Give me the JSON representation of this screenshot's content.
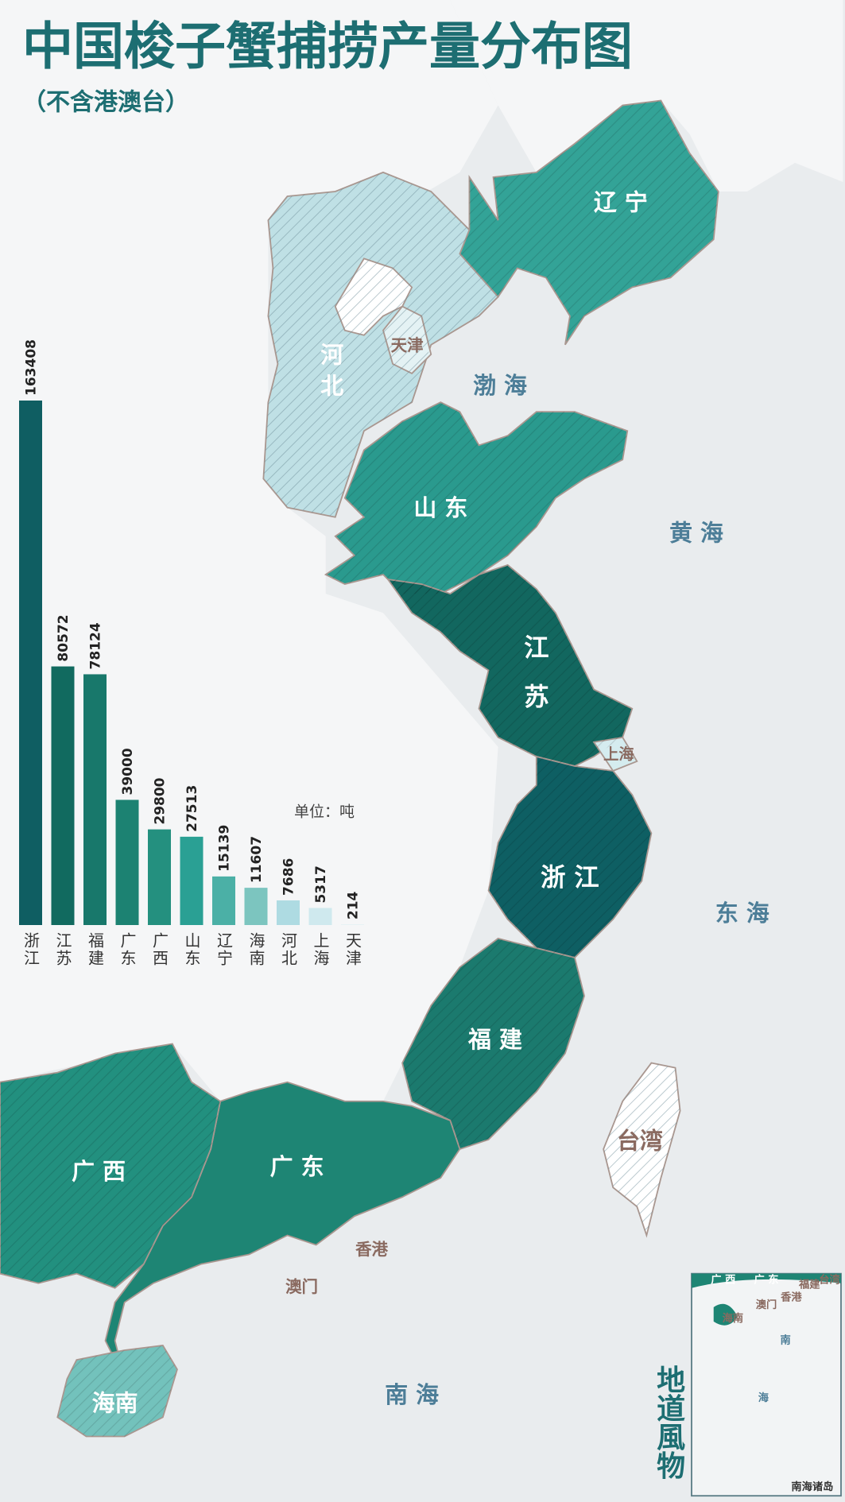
{
  "chart_data": {
    "type": "bar",
    "title": "中国梭子蟹捕捞产量分布图",
    "subtitle": "（不含港澳台）",
    "unit": "单位：吨",
    "categories": [
      "浙江",
      "江苏",
      "福建",
      "广东",
      "广西",
      "山东",
      "辽宁",
      "海南",
      "河北",
      "上海",
      "天津"
    ],
    "values": [
      163408,
      80572,
      78124,
      39000,
      29800,
      27513,
      15139,
      11607,
      7686,
      5317,
      214
    ],
    "colors": [
      "#0f5e62",
      "#116a5f",
      "#18786b",
      "#1c8272",
      "#24907f",
      "#2aa094",
      "#4bb0a6",
      "#7cc5bf",
      "#aedbe2",
      "#cfe9ee",
      "#e3f1f3"
    ],
    "ylim": [
      0,
      163408
    ]
  },
  "map": {
    "labels": [
      "辽 宁",
      "河北",
      "天津",
      "渤 海",
      "山 东",
      "黄 海",
      "江 苏",
      "上海",
      "浙 江",
      "东 海",
      "福 建",
      "台湾",
      "广 东",
      "广 西",
      "香港",
      "澳门",
      "海南",
      "南 海"
    ],
    "inset": [
      "广 西",
      "广 东",
      "福建",
      "台湾",
      "香港",
      "澳门",
      "海南",
      "南",
      "海",
      "南海诸岛"
    ],
    "brand": "地道風物"
  }
}
